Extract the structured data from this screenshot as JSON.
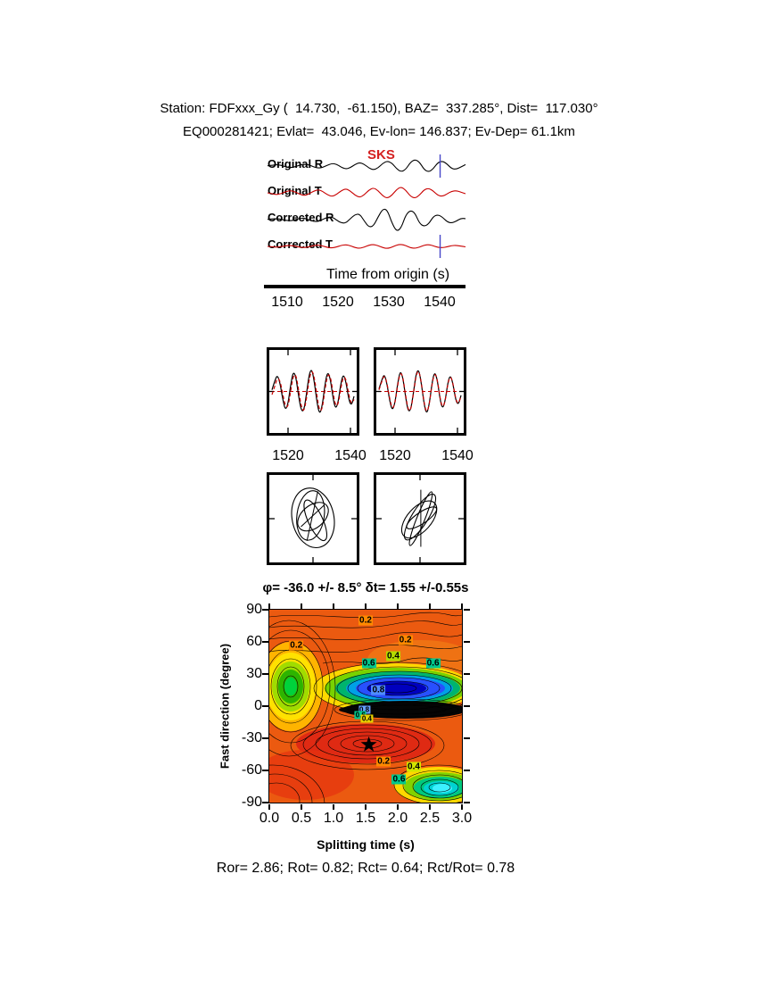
{
  "header": {
    "line1": "Station: FDFxxx_Gy (  14.730,  -61.150), BAZ=  337.285°, Dist=  117.030°",
    "line2": "EQ000281421; Evlat=  43.046, Ev-lon= 146.837; Ev-Dep= 61.1km"
  },
  "footer": {
    "stats": "Ror= 2.86; Rot= 0.82; Rct= 0.64; Rct/Rot= 0.78"
  },
  "chart_data": [
    {
      "id": "seismograms",
      "type": "line",
      "phase_label": "SKS",
      "xlabel": "Time from origin (s)",
      "xlim": [
        1506,
        1545
      ],
      "xticks": [
        1510,
        1520,
        1530,
        1540
      ],
      "window_marker": 1540,
      "marker_color": "#4646c8",
      "traces": [
        {
          "name": "Original R",
          "color": "#000000",
          "marker": true,
          "y": [
            0.02,
            0.06,
            0.12,
            0.06,
            -0.08,
            -0.14,
            -0.06,
            0.08,
            0.16,
            0.1,
            -0.06,
            -0.18,
            -0.12,
            0.08,
            0.22,
            0.16,
            -0.1,
            -0.26,
            -0.14,
            0.14,
            0.3,
            0.16,
            -0.16,
            -0.34,
            -0.16,
            0.22,
            0.44,
            0.26,
            -0.22,
            -0.5,
            -0.3,
            0.3,
            0.58,
            0.34,
            -0.3,
            -0.52,
            -0.24,
            0.3,
            0.44,
            0.18,
            -0.22,
            -0.28,
            -0.08,
            0.12
          ]
        },
        {
          "name": "Original T",
          "color": "#c80000",
          "marker": false,
          "y": [
            0.0,
            -0.08,
            -0.16,
            -0.06,
            0.1,
            0.2,
            0.08,
            -0.12,
            -0.24,
            -0.1,
            0.14,
            0.28,
            0.12,
            -0.16,
            -0.32,
            -0.14,
            0.18,
            0.36,
            0.16,
            -0.2,
            -0.4,
            -0.18,
            0.24,
            0.44,
            0.2,
            -0.26,
            -0.48,
            -0.22,
            0.28,
            0.52,
            0.24,
            -0.28,
            -0.48,
            -0.2,
            0.26,
            0.4,
            0.16,
            -0.22,
            -0.3,
            -0.1,
            0.14,
            0.18,
            0.06,
            -0.08
          ]
        },
        {
          "name": "Corrected R",
          "color": "#000000",
          "marker": false,
          "y": [
            0.02,
            0.05,
            0.08,
            0.02,
            -0.06,
            -0.1,
            -0.02,
            0.1,
            0.12,
            -0.02,
            -0.14,
            -0.16,
            0.02,
            0.18,
            0.22,
            -0.04,
            -0.26,
            -0.28,
            0.08,
            0.4,
            0.46,
            -0.1,
            -0.6,
            -0.52,
            0.2,
            0.85,
            0.8,
            -0.25,
            -0.95,
            -0.7,
            0.35,
            0.75,
            0.55,
            -0.3,
            -0.55,
            -0.35,
            0.25,
            0.4,
            0.2,
            -0.18,
            -0.28,
            -0.12,
            0.1,
            0.08
          ]
        },
        {
          "name": "Corrected T",
          "color": "#c80000",
          "marker": true,
          "y": [
            0.0,
            -0.04,
            -0.08,
            -0.02,
            0.06,
            0.1,
            0.03,
            -0.08,
            -0.12,
            -0.04,
            0.08,
            0.14,
            0.05,
            -0.1,
            -0.16,
            -0.06,
            0.1,
            0.18,
            0.07,
            -0.12,
            -0.2,
            -0.08,
            0.12,
            0.2,
            0.08,
            -0.13,
            -0.22,
            -0.09,
            0.13,
            0.22,
            0.09,
            -0.13,
            -0.2,
            -0.08,
            0.12,
            0.18,
            0.07,
            -0.1,
            -0.14,
            -0.05,
            0.08,
            0.1,
            0.03,
            -0.05
          ]
        }
      ]
    },
    {
      "id": "window-original",
      "type": "line",
      "xlim": [
        1514,
        1542
      ],
      "xticks": [
        1520,
        1540
      ],
      "series": [
        {
          "name": "radial",
          "color": "#000000",
          "dashed": false,
          "y": [
            0.05,
            0.32,
            0.52,
            0.28,
            -0.22,
            -0.58,
            -0.42,
            0.18,
            0.62,
            0.48,
            -0.12,
            -0.58,
            -0.62,
            -0.1,
            0.52,
            0.72,
            0.3,
            -0.35,
            -0.72,
            -0.45,
            0.22,
            0.62,
            0.42,
            -0.18,
            -0.55,
            -0.35,
            0.25,
            0.55,
            0.28,
            -0.25,
            -0.45,
            -0.15
          ]
        },
        {
          "name": "transverse",
          "color": "#c80000",
          "dashed": true,
          "y": [
            -0.1,
            0.15,
            0.42,
            0.35,
            -0.05,
            -0.45,
            -0.5,
            -0.02,
            0.48,
            0.55,
            0.08,
            -0.45,
            -0.65,
            -0.25,
            0.35,
            0.68,
            0.45,
            -0.15,
            -0.62,
            -0.55,
            0.05,
            0.52,
            0.5,
            0.0,
            -0.45,
            -0.42,
            0.1,
            0.48,
            0.38,
            -0.1,
            -0.4,
            -0.25
          ]
        }
      ]
    },
    {
      "id": "window-corrected",
      "type": "line",
      "xlim": [
        1514,
        1542
      ],
      "xticks": [
        1520,
        1540
      ],
      "series": [
        {
          "name": "radial",
          "color": "#000000",
          "dashed": false,
          "y": [
            0.08,
            0.35,
            0.55,
            0.25,
            -0.28,
            -0.6,
            -0.38,
            0.22,
            0.65,
            0.45,
            -0.15,
            -0.62,
            -0.58,
            -0.05,
            0.55,
            0.7,
            0.25,
            -0.38,
            -0.72,
            -0.4,
            0.25,
            0.62,
            0.38,
            -0.22,
            -0.55,
            -0.3,
            0.28,
            0.52,
            0.22,
            -0.28,
            -0.42,
            -0.12
          ]
        },
        {
          "name": "transverse",
          "color": "#c80000",
          "dashed": true,
          "y": [
            0.05,
            0.3,
            0.52,
            0.28,
            -0.22,
            -0.55,
            -0.4,
            0.18,
            0.6,
            0.48,
            -0.1,
            -0.58,
            -0.6,
            -0.08,
            0.5,
            0.68,
            0.28,
            -0.34,
            -0.68,
            -0.42,
            0.22,
            0.58,
            0.4,
            -0.18,
            -0.52,
            -0.32,
            0.25,
            0.5,
            0.24,
            -0.25,
            -0.4,
            -0.14
          ]
        }
      ]
    },
    {
      "id": "particle-original",
      "type": "line",
      "ellipses": [
        [
          0.0,
          0.02,
          0.52,
          0.75,
          -12
        ],
        [
          -0.06,
          0.08,
          0.34,
          0.62,
          8
        ],
        [
          0.06,
          -0.04,
          0.18,
          0.55,
          -25
        ],
        [
          0.0,
          0.05,
          0.44,
          0.28,
          -40
        ]
      ],
      "segments": [
        [
          -0.15,
          -0.55,
          0.12,
          0.68
        ],
        [
          -0.3,
          -0.2,
          0.28,
          0.34
        ]
      ]
    },
    {
      "id": "particle-corrected",
      "type": "line",
      "ellipses": [
        [
          0.02,
          0.0,
          0.1,
          0.72,
          22
        ],
        [
          0.0,
          0.04,
          0.2,
          0.66,
          32
        ],
        [
          -0.02,
          -0.02,
          0.3,
          0.56,
          42
        ],
        [
          0.04,
          0.02,
          0.14,
          0.44,
          56
        ]
      ],
      "segments": [
        [
          0.02,
          -0.7,
          0.02,
          0.72
        ]
      ]
    },
    {
      "id": "error-surface",
      "type": "heatmap",
      "title": "φ= -36.0 +/- 8.5° δt= 1.55 +/-0.55s",
      "xlabel": "Splitting time (s)",
      "ylabel": "Fast direction (degree)",
      "xlim": [
        0.0,
        3.0
      ],
      "ylim": [
        -90,
        90
      ],
      "xticks": [
        "0.0",
        "0.5",
        "1.0",
        "1.5",
        "2.0",
        "2.5",
        "3.0"
      ],
      "yticks": [
        "90",
        "60",
        "30",
        "0",
        "-30",
        "-60",
        "-90"
      ],
      "best_fit": {
        "splitting_time": 1.55,
        "fast_direction": -36,
        "marker": "star"
      },
      "phi_deg": "-36.0",
      "phi_err_deg": "8.5",
      "dt_s": "1.55",
      "dt_err_s": "0.55",
      "contour_labels": [
        {
          "text": "0.2",
          "t": 1.5,
          "deg": 80,
          "bg": "#ff8a00",
          "small": false
        },
        {
          "text": "0.2",
          "t": 0.42,
          "deg": 57,
          "bg": "#ff8a00",
          "small": false
        },
        {
          "text": "0.2",
          "t": 2.12,
          "deg": 62,
          "bg": "#ff8a00",
          "small": false
        },
        {
          "text": "0.4",
          "t": 1.93,
          "deg": 47,
          "bg": "#b4dc00",
          "small": false
        },
        {
          "text": "0.6",
          "t": 1.55,
          "deg": 40,
          "bg": "#00c88c",
          "small": false
        },
        {
          "text": "0.6",
          "t": 2.55,
          "deg": 40,
          "bg": "#00c88c",
          "small": false
        },
        {
          "text": "0.8",
          "t": 1.7,
          "deg": 15,
          "bg": "#508cff",
          "small": false
        },
        {
          "text": "0.8",
          "t": 1.48,
          "deg": -3,
          "bg": "#64a0ff",
          "small": true
        },
        {
          "text": "0.6",
          "t": 1.42,
          "deg": -8,
          "bg": "#00c88c",
          "small": true
        },
        {
          "text": "0.4",
          "t": 1.52,
          "deg": -12,
          "bg": "#e6d200",
          "small": true
        },
        {
          "text": "0.2",
          "t": 1.78,
          "deg": -52,
          "bg": "#ff8a00",
          "small": false
        },
        {
          "text": "0.4",
          "t": 2.25,
          "deg": -57,
          "bg": "#d2e600",
          "small": false
        },
        {
          "text": "0.6",
          "t": 2.02,
          "deg": -68,
          "bg": "#00c88c",
          "small": false
        }
      ]
    }
  ]
}
